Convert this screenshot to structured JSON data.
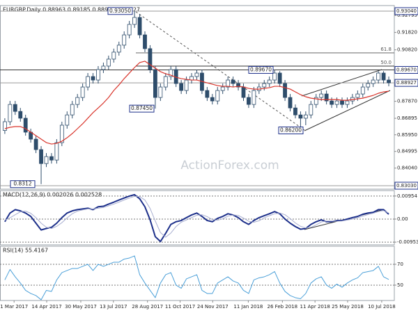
{
  "chart_data": [
    {
      "type": "candlestick",
      "title": "EURGBP.Daily  0.88963 0.89185 0.88915 0.88927",
      "watermark": "ActionForex.com",
      "color": "#2e4d6b",
      "x": [
        "13 Feb 2017",
        "20 Feb 2017",
        "27 Feb 2017",
        "6 Mar 2017",
        "13 Mar 2017",
        "20 Mar 2017",
        "27 Mar 2017",
        "3 Apr 2017",
        "10 Apr 2017",
        "17 Apr 2017",
        "24 Apr 2017",
        "1 May 2017",
        "8 May 2017",
        "15 May 2017",
        "22 May 2017",
        "29 May 2017",
        "5 Jun 2017",
        "12 Jun 2017",
        "19 Jun 2017",
        "26 Jun 2017",
        "3 Jul 2017",
        "10 Jul 2017",
        "17 Jul 2017",
        "24 Jul 2017",
        "31 Jul 2017",
        "7 Aug 2017",
        "14 Aug 2017",
        "21 Aug 2017",
        "28 Aug 2017",
        "4 Sep 2017",
        "11 Sep 2017",
        "18 Sep 2017",
        "25 Sep 2017",
        "2 Oct 2017",
        "9 Oct 2017",
        "16 Oct 2017",
        "23 Oct 2017",
        "30 Oct 2017",
        "6 Nov 2017",
        "13 Nov 2017",
        "20 Nov 2017",
        "27 Nov 2017",
        "4 Dec 2017",
        "11 Dec 2017",
        "18 Dec 2017",
        "25 Dec 2017",
        "1 Jan 2018",
        "8 Jan 2018",
        "15 Jan 2018",
        "22 Jan 2018",
        "29 Jan 2018",
        "5 Feb 2018",
        "12 Feb 2018",
        "19 Feb 2018",
        "26 Feb 2018",
        "5 Mar 2018",
        "12 Mar 2018",
        "19 Mar 2018",
        "26 Mar 2018",
        "2 Apr 2018",
        "9 Apr 2018",
        "16 Apr 2018",
        "23 Apr 2018",
        "30 Apr 2018",
        "7 May 2018",
        "14 May 2018",
        "21 May 2018",
        "28 May 2018",
        "4 Jun 2018",
        "11 Jun 2018",
        "18 Jun 2018",
        "25 Jun 2018",
        "2 Jul 2018",
        "9 Jul 2018",
        "16 Jul 2018"
      ],
      "open": [
        0.862,
        0.867,
        0.8769,
        0.8729,
        0.869,
        0.861,
        0.857,
        0.851,
        0.843,
        0.847,
        0.845,
        0.855,
        0.865,
        0.8709,
        0.8769,
        0.8809,
        0.8869,
        0.8929,
        0.8909,
        0.8969,
        0.8989,
        0.9029,
        0.9069,
        0.9109,
        0.9168,
        0.9228,
        0.9268,
        0.9168,
        0.9089,
        0.8969,
        0.8809,
        0.8869,
        0.8929,
        0.8969,
        0.8889,
        0.8849,
        0.8909,
        0.8929,
        0.8949,
        0.8849,
        0.8809,
        0.8789,
        0.8849,
        0.8869,
        0.8909,
        0.8889,
        0.8869,
        0.8809,
        0.8769,
        0.8849,
        0.8869,
        0.8889,
        0.8909,
        0.8949,
        0.8889,
        0.8809,
        0.8749,
        0.8709,
        0.869,
        0.8709,
        0.8769,
        0.8809,
        0.8829,
        0.8789,
        0.8769,
        0.8789,
        0.8769,
        0.8789,
        0.8809,
        0.8829,
        0.8869,
        0.8889,
        0.8909,
        0.8949,
        0.8909
      ],
      "high": [
        0.869,
        0.8789,
        0.8789,
        0.8749,
        0.871,
        0.863,
        0.859,
        0.853,
        0.849,
        0.849,
        0.857,
        0.867,
        0.8729,
        0.8789,
        0.8829,
        0.8889,
        0.8949,
        0.8949,
        0.8989,
        0.9009,
        0.9049,
        0.9089,
        0.9129,
        0.9188,
        0.9248,
        0.9305,
        0.9288,
        0.9188,
        0.9109,
        0.8989,
        0.8889,
        0.8949,
        0.8989,
        0.8989,
        0.8909,
        0.8929,
        0.8949,
        0.8969,
        0.8969,
        0.8869,
        0.8829,
        0.8869,
        0.8889,
        0.8929,
        0.8929,
        0.8909,
        0.8889,
        0.8829,
        0.8869,
        0.8889,
        0.8909,
        0.8929,
        0.8967,
        0.896,
        0.8909,
        0.8829,
        0.8769,
        0.8729,
        0.8729,
        0.8789,
        0.8829,
        0.8849,
        0.8849,
        0.8809,
        0.8809,
        0.8809,
        0.8809,
        0.8829,
        0.8849,
        0.8889,
        0.8909,
        0.8929,
        0.896,
        0.896,
        0.8929
      ],
      "low": [
        0.86,
        0.865,
        0.8709,
        0.867,
        0.859,
        0.855,
        0.849,
        0.8312,
        0.841,
        0.843,
        0.843,
        0.853,
        0.863,
        0.8689,
        0.8749,
        0.8789,
        0.8849,
        0.8889,
        0.8889,
        0.8949,
        0.8969,
        0.9009,
        0.9049,
        0.9089,
        0.9148,
        0.9208,
        0.9148,
        0.9069,
        0.8949,
        0.8745,
        0.8789,
        0.8849,
        0.8909,
        0.8869,
        0.8829,
        0.8829,
        0.8889,
        0.8909,
        0.8829,
        0.8789,
        0.8769,
        0.8769,
        0.8829,
        0.8849,
        0.8869,
        0.8849,
        0.8789,
        0.8749,
        0.8749,
        0.8829,
        0.8849,
        0.8869,
        0.8889,
        0.8869,
        0.8789,
        0.8729,
        0.8689,
        0.862,
        0.865,
        0.8689,
        0.8749,
        0.8789,
        0.8769,
        0.8749,
        0.8749,
        0.8749,
        0.8749,
        0.8769,
        0.8789,
        0.8809,
        0.8849,
        0.8869,
        0.8889,
        0.8889,
        0.8873
      ],
      "close": [
        0.867,
        0.8769,
        0.8729,
        0.869,
        0.861,
        0.857,
        0.851,
        0.843,
        0.847,
        0.845,
        0.855,
        0.865,
        0.8709,
        0.8769,
        0.8809,
        0.8869,
        0.8929,
        0.8909,
        0.8969,
        0.8989,
        0.9029,
        0.9069,
        0.9109,
        0.9168,
        0.9228,
        0.9268,
        0.9168,
        0.9089,
        0.8969,
        0.8809,
        0.8869,
        0.8929,
        0.8969,
        0.8889,
        0.8849,
        0.8909,
        0.8929,
        0.8949,
        0.8849,
        0.8809,
        0.8789,
        0.8849,
        0.8869,
        0.8909,
        0.8889,
        0.8869,
        0.8809,
        0.8769,
        0.8849,
        0.8869,
        0.8889,
        0.8909,
        0.8949,
        0.8889,
        0.8809,
        0.8749,
        0.8709,
        0.869,
        0.8709,
        0.8769,
        0.8809,
        0.8829,
        0.8789,
        0.8769,
        0.8789,
        0.8769,
        0.8789,
        0.8809,
        0.8829,
        0.8869,
        0.8889,
        0.8909,
        0.8949,
        0.8909,
        0.8893
      ],
      "ma": {
        "color": "#d9342b",
        "values": [
          0.863,
          0.8638,
          0.8642,
          0.8642,
          0.863,
          0.861,
          0.859,
          0.857,
          0.855,
          0.8542,
          0.8546,
          0.8558,
          0.8578,
          0.8602,
          0.863,
          0.8658,
          0.869,
          0.8722,
          0.8749,
          0.8777,
          0.8809,
          0.8849,
          0.8881,
          0.8917,
          0.8949,
          0.8981,
          0.9009,
          0.9017,
          0.8997,
          0.8977,
          0.8957,
          0.8945,
          0.8937,
          0.8925,
          0.8917,
          0.8913,
          0.8909,
          0.8909,
          0.8901,
          0.8893,
          0.8885,
          0.8877,
          0.8873,
          0.8873,
          0.8869,
          0.8873,
          0.8869,
          0.8861,
          0.8857,
          0.8857,
          0.8861,
          0.8865,
          0.8873,
          0.8873,
          0.8865,
          0.8857,
          0.8841,
          0.8825,
          0.8813,
          0.8805,
          0.8801,
          0.8797,
          0.8797,
          0.8797,
          0.8797,
          0.8793,
          0.8793,
          0.8797,
          0.8801,
          0.8805,
          0.8813,
          0.8821,
          0.8833,
          0.8841,
          0.8845
        ]
      },
      "xlim": [
        "10 Feb 2017",
        "27 Jul 2018"
      ],
      "xticks": [
        "1 Mar 2017",
        "14 Apr 2017",
        "30 May 2017",
        "13 Jul 2017",
        "28 Aug 2017",
        "11 Oct 2017",
        "24 Nov 2017",
        "11 Jan 2018",
        "26 Feb 2018",
        "11 Apr 2018",
        "25 May 2018",
        "10 Jul 2018"
      ],
      "ylim": [
        0.8283,
        0.9336
      ],
      "yticks": [
        0.92795,
        {
          "value": 0.9182,
          "label": "0.91820"
        },
        {
          "value": 0.9082,
          "label": "0.90820"
        },
        {
          "value": 0.8787,
          "label": "0.87870"
        },
        0.86895,
        {
          "value": 0.8595,
          "label": "0.85950"
        },
        0.84995,
        {
          "value": 0.8404,
          "label": "0.84040"
        }
      ],
      "axis_markers": [
        {
          "value": 0.9304,
          "label": "0.93040"
        },
        {
          "value": 0.8967,
          "label": "0.89670"
        },
        0.88927,
        {
          "value": 0.8303,
          "label": "0.83030"
        }
      ],
      "price_labels": [
        {
          "value": 0.9305,
          "label": "0.93050"
        },
        {
          "value": 0.8745,
          "label": "0.87450"
        },
        0.8312,
        {
          "value": 0.8967,
          "label": "0.89670"
        },
        {
          "value": 0.862,
          "label": "0.86200"
        }
      ],
      "fib_levels": [
        {
          "label": "61.8",
          "value": 0.9065
        },
        {
          "label": "50.0",
          "value": 0.8989
        }
      ]
    },
    {
      "type": "line",
      "title": "MACD(12,26,9) 0.002026 0.002528",
      "series": [
        {
          "color": "#1c2f8a",
          "values": [
            -0.0011,
            0.0025,
            0.0039,
            0.0034,
            0.0025,
            0.0011,
            -0.0017,
            -0.0045,
            -0.0039,
            -0.0034,
            -0.0017,
            0.0006,
            0.0025,
            0.0034,
            0.0039,
            0.0042,
            0.0045,
            0.0039,
            0.0051,
            0.0053,
            0.0062,
            0.007,
            0.0079,
            0.0087,
            0.0095,
            0.0101,
            0.0084,
            0.0051,
            -0.0003,
            -0.0073,
            -0.0093,
            -0.0059,
            -0.0022,
            -0.0011,
            -0.0006,
            0.0006,
            0.0017,
            0.0025,
            0.0011,
            -0.0006,
            -0.0011,
            0.0003,
            0.0011,
            0.0022,
            0.0017,
            0.0006,
            -0.0011,
            -0.0022,
            -0.0006,
            0.0006,
            0.0014,
            0.0022,
            0.0031,
            0.0022,
            0.0,
            -0.0017,
            -0.0031,
            -0.0042,
            -0.0039,
            -0.0022,
            -0.0011,
            -0.0003,
            -0.0011,
            -0.0011,
            -0.0006,
            -0.0006,
            0.0,
            0.0006,
            0.0011,
            0.002,
            0.0025,
            0.0028,
            0.0039,
            0.0039,
            0.002
          ]
        },
        {
          "color": "#a8aed0",
          "values": [
            -0.0005,
            0.0005,
            0.0018,
            0.003,
            0.0033,
            0.0024,
            0.0006,
            -0.0017,
            -0.0034,
            -0.0039,
            -0.003,
            -0.0015,
            0.0005,
            0.0022,
            0.0033,
            0.0038,
            0.0042,
            0.0042,
            0.0045,
            0.0048,
            0.0055,
            0.0062,
            0.007,
            0.0079,
            0.0087,
            0.0094,
            0.0093,
            0.0079,
            0.0044,
            -0.0008,
            -0.0056,
            -0.0075,
            -0.0058,
            -0.0031,
            -0.0013,
            -0.0004,
            0.0006,
            0.0016,
            0.0018,
            0.001,
            -0.0002,
            -0.0005,
            0.0001,
            0.0012,
            0.0017,
            0.0015,
            0.0004,
            -0.0009,
            -0.0013,
            -0.0007,
            0.0005,
            0.0014,
            0.0022,
            0.0025,
            0.0018,
            0.0002,
            -0.0016,
            -0.003,
            -0.0037,
            -0.0034,
            -0.0024,
            -0.0012,
            -0.0008,
            -0.0008,
            -0.0009,
            -0.0008,
            -0.0004,
            0.0,
            0.0006,
            0.0012,
            0.0019,
            0.0024,
            0.0031,
            0.0035,
            0.0025
          ]
        }
      ],
      "ylim": [
        -0.01066,
        0.01179
      ],
      "yticks": [
        0.00954,
        {
          "value": 0,
          "label": "0.00"
        },
        -0.009538
      ]
    },
    {
      "type": "line",
      "title": "RSI(14) 55.4167",
      "series": [
        {
          "color": "#4a9fd8",
          "values": [
            55,
            65,
            58,
            52,
            45,
            42,
            40,
            36,
            45,
            44,
            55,
            62,
            64,
            66,
            66,
            68,
            70,
            64,
            70,
            68,
            70,
            72,
            72,
            75,
            76,
            78,
            60,
            52,
            45,
            38,
            52,
            60,
            62,
            50,
            47,
            56,
            58,
            60,
            45,
            42,
            42,
            52,
            55,
            58,
            54,
            52,
            45,
            42,
            55,
            57,
            58,
            60,
            63,
            52,
            44,
            40,
            38,
            37,
            42,
            52,
            56,
            58,
            50,
            47,
            51,
            48,
            52,
            55,
            57,
            62,
            63,
            64,
            68,
            58,
            55.4
          ]
        }
      ],
      "ylim": [
        35.3,
        87.3
      ],
      "yticks": [
        70,
        50
      ]
    }
  ]
}
